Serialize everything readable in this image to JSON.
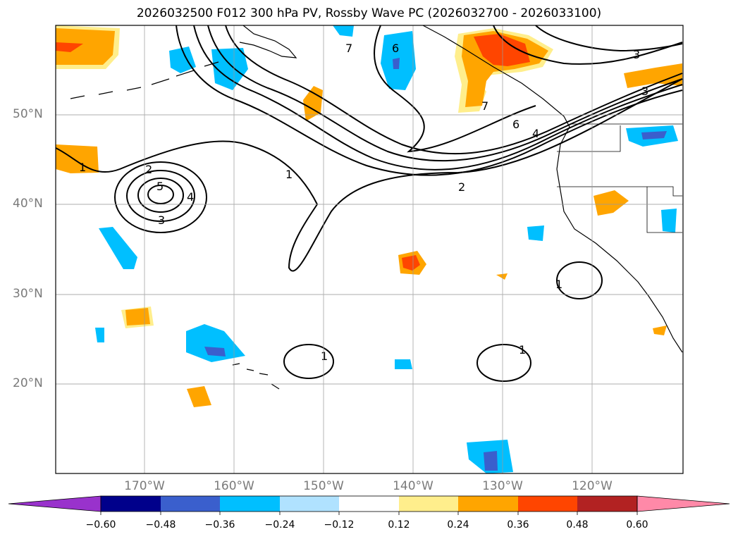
{
  "title": "2026032500 F012 300 hPa PV, Rossby Wave PC (2026032700 - 2026033100)",
  "lat_labels": [
    "50°N",
    "40°N",
    "30°N",
    "20°N"
  ],
  "lon_labels": [
    "170°W",
    "160°W",
    "150°W",
    "140°W",
    "130°W",
    "120°W"
  ],
  "contour_labels": [
    "1",
    "2",
    "3",
    "4",
    "5",
    "6",
    "7"
  ],
  "colorbar": {
    "ticks": [
      "−0.60",
      "−0.48",
      "−0.36",
      "−0.24",
      "−0.12",
      "0.12",
      "0.24",
      "0.36",
      "0.48",
      "0.60"
    ],
    "colors": [
      "#9932cc",
      "#00008b",
      "#3a5fcd",
      "#00bfff",
      "#b0e2ff",
      "#ffffff",
      "#ffee8c",
      "#ffa500",
      "#ff4500",
      "#b22222",
      "#ff89a8"
    ]
  },
  "colors": {
    "cyan": "#00bfff",
    "lightblue": "#b0e2ff",
    "blue": "#3a5fcd",
    "yellow": "#ffee8c",
    "orange": "#ffa500",
    "red": "#ff4500"
  }
}
